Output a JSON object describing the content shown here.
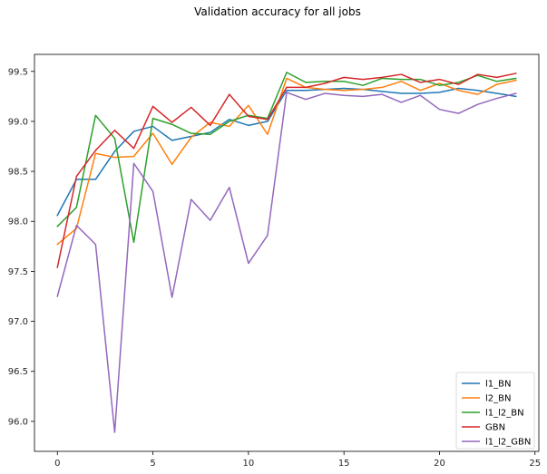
{
  "chart_data": {
    "type": "line",
    "title": "Validation accuracy for all jobs",
    "xlabel": "",
    "ylabel": "",
    "xlim": [
      -1.2,
      25.2
    ],
    "ylim": [
      95.7,
      99.67
    ],
    "x_ticks": [
      0,
      5,
      10,
      15,
      20,
      25
    ],
    "y_ticks": [
      96.0,
      96.5,
      97.0,
      97.5,
      98.0,
      98.5,
      99.0,
      99.5
    ],
    "x_tick_labels": [
      "0",
      "5",
      "10",
      "15",
      "20",
      "25"
    ],
    "y_tick_labels": [
      "96.0",
      "96.5",
      "97.0",
      "97.5",
      "98.0",
      "98.5",
      "99.0",
      "99.5"
    ],
    "grid": false,
    "legend_position": "lower-right",
    "x": [
      0,
      1,
      2,
      3,
      4,
      5,
      6,
      7,
      8,
      9,
      10,
      11,
      12,
      13,
      14,
      15,
      16,
      17,
      18,
      19,
      20,
      21,
      22,
      23,
      24
    ],
    "series": [
      {
        "name": "l1_BN",
        "color": "#1f77b4",
        "values": [
          98.06,
          98.42,
          98.42,
          98.7,
          98.9,
          98.95,
          98.81,
          98.85,
          98.89,
          99.02,
          98.96,
          99.0,
          99.31,
          99.31,
          99.32,
          99.33,
          99.32,
          99.3,
          99.28,
          99.28,
          99.29,
          99.33,
          99.31,
          99.28,
          99.25
        ]
      },
      {
        "name": "l2_BN",
        "color": "#ff7f0e",
        "values": [
          97.77,
          97.93,
          98.68,
          98.64,
          98.65,
          98.88,
          98.57,
          98.84,
          98.99,
          98.95,
          99.16,
          98.87,
          99.43,
          99.34,
          99.32,
          99.31,
          99.32,
          99.34,
          99.4,
          99.31,
          99.38,
          99.31,
          99.27,
          99.37,
          99.41
        ]
      },
      {
        "name": "l1_l2_BN",
        "color": "#2ca02c",
        "values": [
          97.95,
          98.14,
          99.06,
          98.83,
          97.79,
          99.03,
          98.97,
          98.88,
          98.87,
          99.0,
          99.06,
          99.03,
          99.49,
          99.39,
          99.4,
          99.4,
          99.36,
          99.43,
          99.42,
          99.42,
          99.36,
          99.39,
          99.46,
          99.4,
          99.43
        ]
      },
      {
        "name": "GBN",
        "color": "#d62728",
        "values": [
          97.54,
          98.45,
          98.71,
          98.91,
          98.73,
          99.15,
          98.99,
          99.14,
          98.96,
          99.27,
          99.05,
          99.02,
          99.34,
          99.34,
          99.38,
          99.44,
          99.42,
          99.44,
          99.47,
          99.39,
          99.42,
          99.37,
          99.47,
          99.44,
          99.48
        ]
      },
      {
        "name": "l1_l2_GBN",
        "color": "#9467bd",
        "values": [
          97.25,
          97.96,
          97.77,
          95.89,
          98.58,
          98.3,
          97.24,
          98.22,
          98.01,
          98.34,
          97.58,
          97.86,
          99.29,
          99.22,
          99.28,
          99.26,
          99.25,
          99.27,
          99.19,
          99.26,
          99.12,
          99.08,
          99.17,
          99.23,
          99.28
        ]
      }
    ]
  }
}
